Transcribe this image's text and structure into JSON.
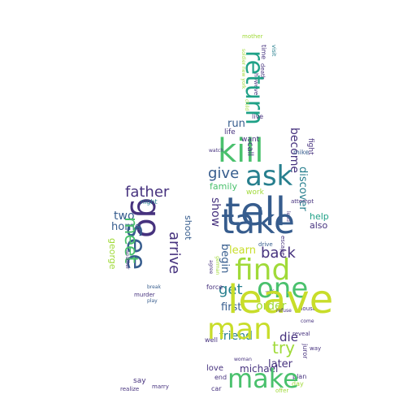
{
  "wordcloud": {
    "colors": {
      "dark_purple": "#46327e",
      "indigo": "#365c8d",
      "blue": "#277f8e",
      "teal": "#1fa187",
      "green": "#4ac16d",
      "lime": "#a0da39",
      "yellow": "#c8dd2a"
    },
    "glass": {
      "father": "father",
      "go": "go",
      "two": "two",
      "home": "home",
      "night": "night",
      "see": "see",
      "meet": "meet",
      "arrive": "arrive",
      "shoot": "shoot",
      "george": "george",
      "another": "another",
      "murder": "murder",
      "break": "break",
      "play": "play",
      "say": "say",
      "marry": "marry",
      "realize": "realize"
    },
    "bottle": {
      "mother": "mother",
      "visit": "visit",
      "time": "time",
      "death": "death",
      "however": "however",
      "soldier_new_york": "soldier new york",
      "return": "return",
      "live": "live",
      "kill": "kill",
      "run": "run",
      "life": "life",
      "want": "want",
      "call": "call",
      "become": "become",
      "fight": "fight",
      "child": "child",
      "watch": "watch",
      "mike": "mike",
      "ask": "ask",
      "give": "give",
      "family": "family",
      "work": "work",
      "discover": "discover",
      "tell": "tell",
      "show": "show",
      "attempt": "attempt",
      "lead": "lead",
      "take": "take",
      "help": "help",
      "also": "also",
      "begin": "begin",
      "back": "back",
      "learn": "learn",
      "drive": "drive",
      "escape": "escape",
      "find": "find",
      "get": "get",
      "one": "one",
      "order": "order",
      "first": "first",
      "force": "force",
      "wife": "wife",
      "house": "house",
      "leave": "leave",
      "friend": "friend",
      "die": "die",
      "reveal": "reveal",
      "well": "well",
      "man": "man",
      "try": "try",
      "later": "later",
      "love": "love",
      "end": "end",
      "michael": "michael",
      "plan": "plan",
      "day": "day",
      "make": "make",
      "car": "car",
      "offer": "offer",
      "juror": "juror",
      "woman": "woman",
      "agree": "agree",
      "german": "german",
      "refuse": "refuse",
      "come": "come",
      "way": "way"
    }
  }
}
